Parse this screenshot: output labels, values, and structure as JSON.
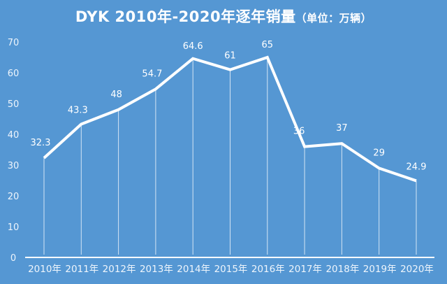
{
  "title": {
    "main": "DYK 2010年-2020年逐年销量",
    "unit": "（单位：万辆）"
  },
  "colors": {
    "background": "#5597d3",
    "line": "#ffffff",
    "text": "#ffffff"
  },
  "chart_data": {
    "type": "line",
    "title": "DYK 2010年-2020年逐年销量（单位：万辆）",
    "xlabel": "",
    "ylabel": "",
    "categories": [
      "2010年",
      "2011年",
      "2012年",
      "2013年",
      "2014年",
      "2015年",
      "2016年",
      "2017年",
      "2018年",
      "2019年",
      "2020年"
    ],
    "series": [
      {
        "name": "销量（万辆）",
        "values": [
          32.3,
          43.3,
          48,
          54.7,
          64.6,
          61,
          65,
          36,
          37,
          29,
          24.9
        ]
      }
    ],
    "data_labels": [
      "32.3",
      "43.3",
      "48",
      "54.7",
      "64.6",
      "61",
      "65",
      "36",
      "37",
      "29",
      "24.9"
    ],
    "ylim": [
      0,
      70
    ],
    "yticks": [
      0,
      10,
      20,
      30,
      40,
      50,
      60,
      70
    ],
    "grid": false,
    "drop_lines": true,
    "legend": "none"
  }
}
